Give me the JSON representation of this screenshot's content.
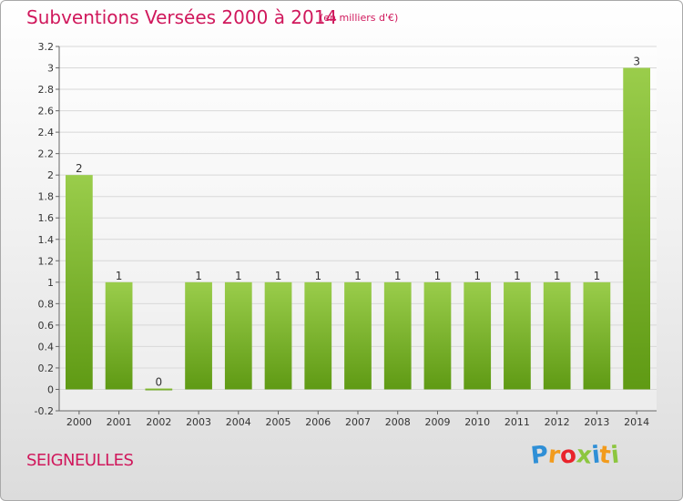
{
  "header": {
    "title": "Subventions Versées 2000 à 2014",
    "subtitle": "(en milliers d'€)"
  },
  "footer": {
    "town": "SEIGNEULLES",
    "brand": "Proxiti",
    "brand_letters": [
      {
        "ch": "P",
        "color": "#2f8fd6"
      },
      {
        "ch": "r",
        "color": "#f29b1c"
      },
      {
        "ch": "o",
        "color": "#e9232b"
      },
      {
        "ch": "x",
        "color": "#8cc63f"
      },
      {
        "ch": "i",
        "color": "#2f8fd6"
      },
      {
        "ch": "t",
        "color": "#f29b1c"
      },
      {
        "ch": "i",
        "color": "#8cc63f"
      }
    ]
  },
  "colors": {
    "title": "#d0185c",
    "bar_top": "#9acd4b",
    "bar_bottom": "#5f9a14",
    "axis": "#666666",
    "grid": "#d8d8d8"
  },
  "chart_data": {
    "type": "bar",
    "categories": [
      "2000",
      "2001",
      "2002",
      "2003",
      "2004",
      "2005",
      "2006",
      "2007",
      "2008",
      "2009",
      "2010",
      "2011",
      "2012",
      "2013",
      "2014"
    ],
    "values": [
      2,
      1,
      0,
      1,
      1,
      1,
      1,
      1,
      1,
      1,
      1,
      1,
      1,
      1,
      3
    ],
    "labels": [
      "2",
      "1",
      "0",
      "1",
      "1",
      "1",
      "1",
      "1",
      "1",
      "1",
      "1",
      "1",
      "1",
      "1",
      "3"
    ],
    "yticks": [
      "-0.2",
      "0",
      "0.2",
      "0.4",
      "0.6",
      "0.8",
      "1",
      "1.2",
      "1.4",
      "1.6",
      "1.8",
      "2",
      "2.2",
      "2.4",
      "2.6",
      "2.8",
      "3",
      "3.2"
    ],
    "ylim": [
      -0.2,
      3.2
    ],
    "grid": true
  }
}
